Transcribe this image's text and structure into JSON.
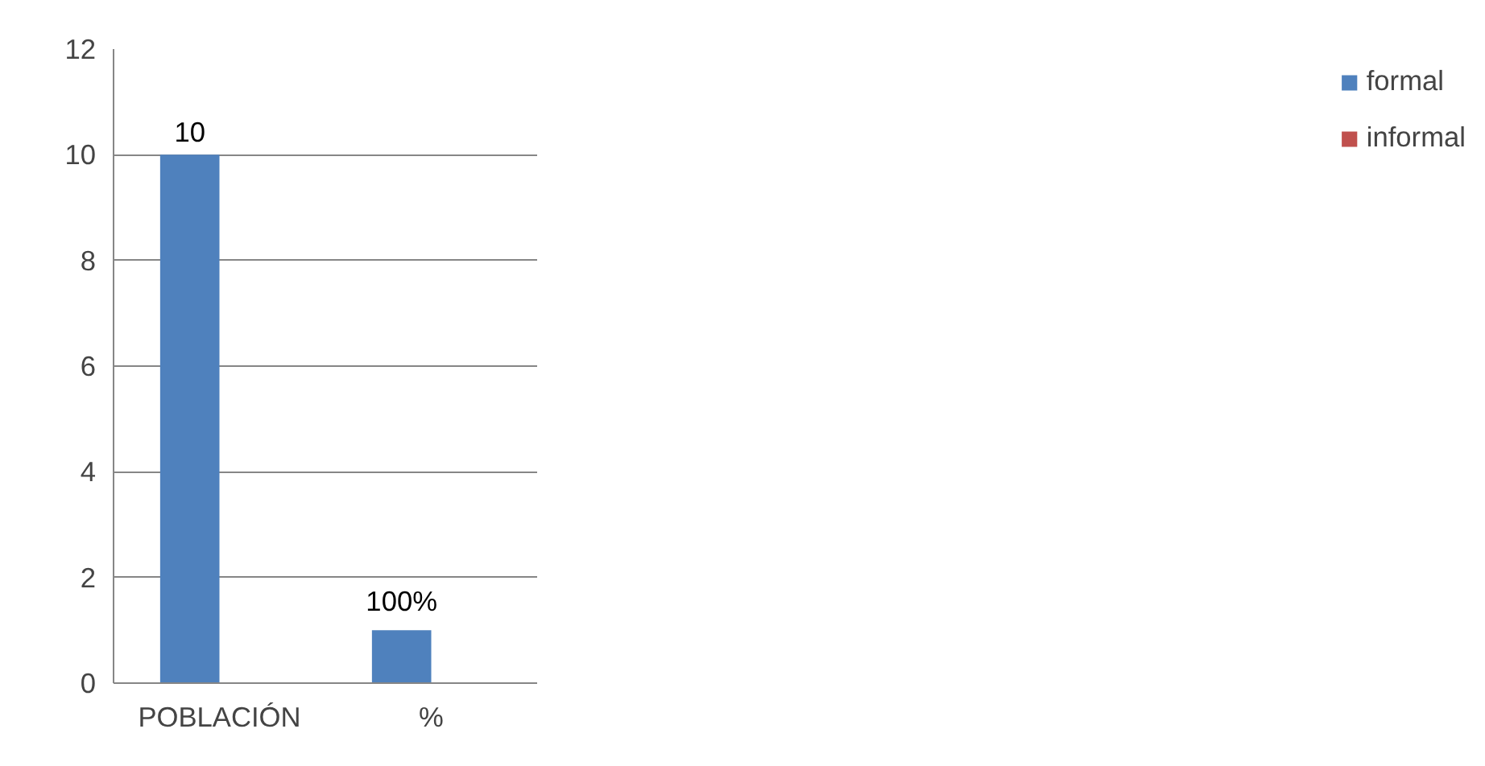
{
  "chart_data": {
    "type": "bar",
    "categories": [
      "POBLACIÓN",
      "%"
    ],
    "series": [
      {
        "name": "formal",
        "color": "#4f81bd",
        "values": [
          10,
          1
        ],
        "value_labels": [
          "10",
          "100%"
        ]
      },
      {
        "name": "informal",
        "color": "#c0504d",
        "values": [
          0,
          0
        ]
      }
    ],
    "ylim": [
      0,
      12
    ],
    "yticks": [
      0,
      2,
      4,
      6,
      8,
      10,
      12
    ],
    "grid": "y",
    "legend": "right"
  }
}
